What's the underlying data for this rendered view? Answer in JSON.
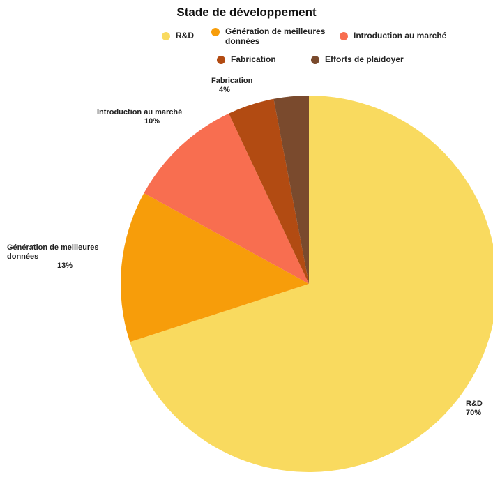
{
  "chart_data": {
    "type": "pie",
    "title": "Stade de développement",
    "legend_placement": "top",
    "slices": [
      {
        "label": "R&D",
        "value": 70,
        "value_label": "70%",
        "color": "#F9DA5F"
      },
      {
        "label": "Génération de meilleures données",
        "value": 13,
        "value_label": "13%",
        "color": "#F79D0A"
      },
      {
        "label": "Introduction au marché",
        "value": 10,
        "value_label": "10%",
        "color": "#F86E50"
      },
      {
        "label": "Fabrication",
        "value": 4,
        "value_label": "4%",
        "color": "#B24B12"
      },
      {
        "label": "Efforts de plaidoyer",
        "value": 3,
        "value_label": "",
        "color": "#7A4A2D"
      }
    ],
    "callouts": [
      {
        "slice": 0,
        "text": "R&D",
        "value_text": "70%"
      },
      {
        "slice": 1,
        "text": "Génération de meilleures\ndonnées",
        "value_text": "13%"
      },
      {
        "slice": 2,
        "text": "Introduction au marché",
        "value_text": "10%"
      },
      {
        "slice": 3,
        "text": "Fabrication",
        "value_text": "4%"
      }
    ]
  },
  "legend": [
    {
      "label": "R&D",
      "color": "#F9DA5F"
    },
    {
      "label": "Génération de meilleures\ndonnées",
      "color": "#F79D0A"
    },
    {
      "label": "Introduction au marché",
      "color": "#F86E50"
    },
    {
      "label": "Fabrication",
      "color": "#B24B12"
    },
    {
      "label": "Efforts de plaidoyer",
      "color": "#7A4A2D"
    }
  ]
}
